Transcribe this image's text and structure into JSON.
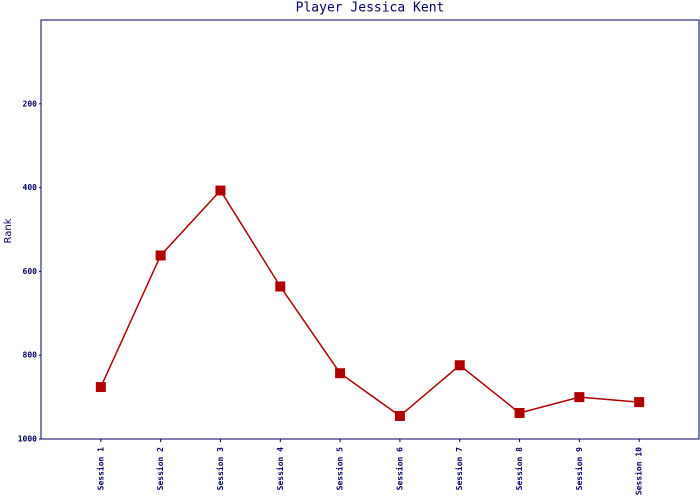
{
  "chart_data": {
    "type": "line",
    "title": "Player Jessica Kent",
    "y_label": "Rank",
    "categories": [
      "Session 1",
      "Session 2",
      "Session 3",
      "Session 4",
      "Session 5",
      "Session 6",
      "Session 7",
      "Session 8",
      "Session 9",
      "Session 10"
    ],
    "series": [
      {
        "name": "Rank",
        "color": "#b00000",
        "values": [
          876,
          562,
          407,
          636,
          843,
          945,
          824,
          938,
          900,
          912
        ]
      }
    ],
    "ylim": [
      1000,
      0
    ],
    "yticks": [
      200,
      400,
      600,
      800,
      1000
    ]
  }
}
